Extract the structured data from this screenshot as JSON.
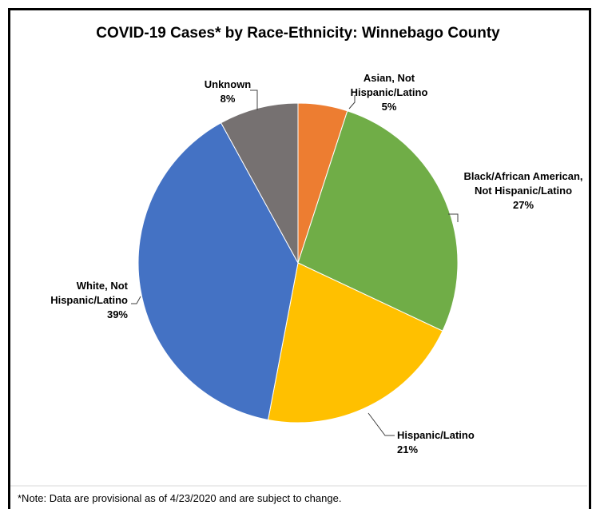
{
  "note": "*Note: Data are provisional as of 4/23/2020 and are subject to change.",
  "colors": {
    "border": "#000000",
    "separator": "#d9d9d9",
    "leader": "#404040",
    "text": "#000000"
  },
  "chart_data": {
    "type": "pie",
    "title": "COVID-19 Cases* by Race-Ethnicity: Winnebago County",
    "start_angle_deg": 0,
    "direction": "clockwise",
    "slices": [
      {
        "label_lines": [
          "Asian, Not",
          "Hispanic/Latino"
        ],
        "value": 5,
        "value_label": "5%",
        "color": "#ED7D31"
      },
      {
        "label_lines": [
          "Black/African American,",
          "Not Hispanic/Latino"
        ],
        "value": 27,
        "value_label": "27%",
        "color": "#70AD47"
      },
      {
        "label_lines": [
          "Hispanic/Latino"
        ],
        "value": 21,
        "value_label": "21%",
        "color": "#FFC000"
      },
      {
        "label_lines": [
          "White, Not",
          "Hispanic/Latino"
        ],
        "value": 39,
        "value_label": "39%",
        "color": "#4472C4"
      },
      {
        "label_lines": [
          "Unknown"
        ],
        "value": 8,
        "value_label": "8%",
        "color": "#767171"
      }
    ]
  }
}
